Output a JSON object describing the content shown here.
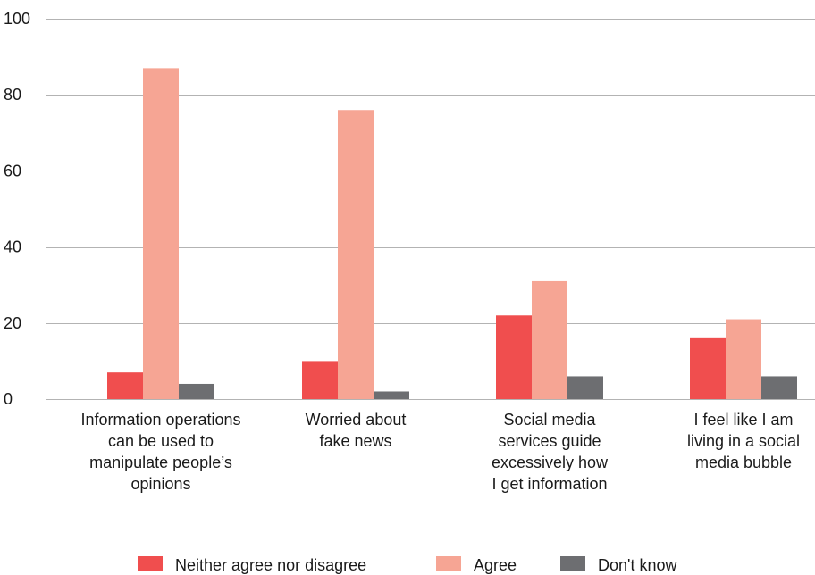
{
  "chart_data": {
    "type": "bar",
    "title": "",
    "xlabel": "",
    "ylabel": "",
    "ylim": [
      0,
      100
    ],
    "yticks": [
      0,
      20,
      40,
      60,
      80,
      100
    ],
    "grid": true,
    "legend_position": "bottom",
    "categories": [
      [
        "Information operations",
        "can be used to",
        "manipulate people’s",
        "opinions"
      ],
      [
        "Worried about",
        "fake news"
      ],
      [
        "Social media",
        "services guide",
        "excessively how",
        "I get information"
      ],
      [
        "I feel like I am",
        "living in a social",
        "media bubble"
      ]
    ],
    "series": [
      {
        "name": "Neither agree nor disagree",
        "color": "#f04e4e",
        "values": [
          7,
          10,
          22,
          16
        ]
      },
      {
        "name": "Agree",
        "color": "#f6a594",
        "values": [
          87,
          76,
          31,
          21
        ]
      },
      {
        "name": "Don't know",
        "color": "#6d6e71",
        "values": [
          4,
          2,
          6,
          6
        ]
      }
    ]
  }
}
